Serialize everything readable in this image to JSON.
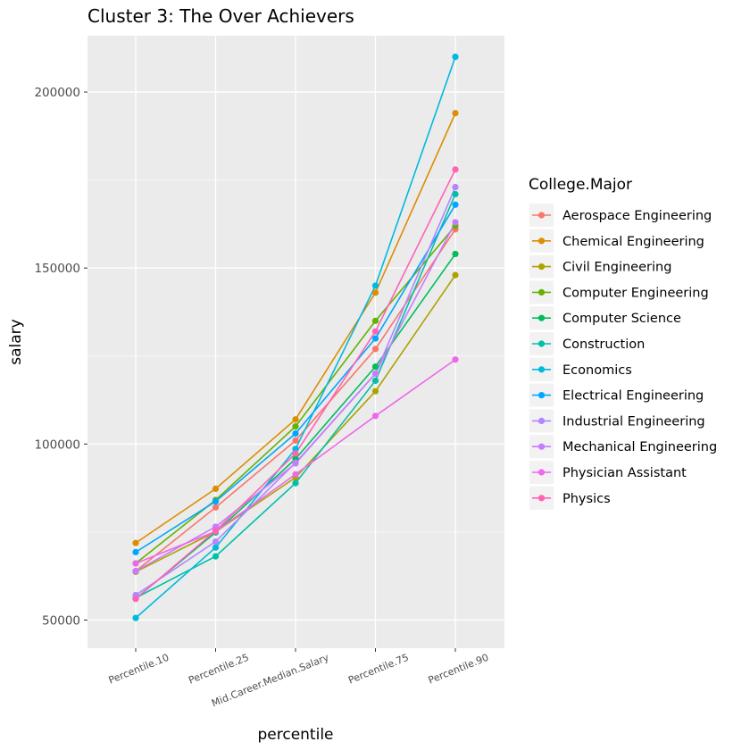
{
  "chart_data": {
    "type": "line",
    "title": "Cluster 3: The Over Achievers",
    "xlabel": "percentile",
    "ylabel": "salary",
    "categories": [
      "Percentile.10",
      "Percentile.25",
      "Mid.Career.Median.Salary",
      "Percentile.75",
      "Percentile.90"
    ],
    "yticks": [
      "50000",
      "100000",
      "150000",
      "200000"
    ],
    "ytick_values": [
      50000,
      100000,
      150000,
      200000
    ],
    "ylim": [
      42000,
      216000
    ],
    "grid": true,
    "legend_title": "College.Major",
    "legend_position": "right",
    "series": [
      {
        "name": "Aerospace Engineering",
        "color": "#F8766D",
        "values": [
          63900,
          82000,
          101000,
          127000,
          161000
        ]
      },
      {
        "name": "Chemical Engineering",
        "color": "#DB8E00",
        "values": [
          71900,
          87300,
          107000,
          143000,
          194000
        ]
      },
      {
        "name": "Civil Engineering",
        "color": "#AEA200",
        "values": [
          63700,
          75100,
          90500,
          115000,
          148000
        ]
      },
      {
        "name": "Computer Engineering",
        "color": "#64B200",
        "values": [
          66100,
          84100,
          105000,
          135000,
          162000
        ]
      },
      {
        "name": "Computer Science",
        "color": "#00BD5C",
        "values": [
          56100,
          74900,
          95800,
          122000,
          154000
        ]
      },
      {
        "name": "Construction",
        "color": "#00C1A7",
        "values": [
          56300,
          68100,
          88900,
          118000,
          171000
        ]
      },
      {
        "name": "Economics",
        "color": "#00BADE",
        "values": [
          50600,
          70600,
          98600,
          145000,
          210000
        ]
      },
      {
        "name": "Electrical Engineering",
        "color": "#00A6FF",
        "values": [
          69300,
          83700,
          103000,
          130000,
          168000
        ]
      },
      {
        "name": "Industrial Engineering",
        "color": "#B385FF",
        "values": [
          57100,
          72300,
          94700,
          120000,
          173000
        ]
      },
      {
        "name": "Mechanical Engineering",
        "color": "#C77CFF",
        "values": [
          63900,
          76500,
          94500,
          120000,
          163000
        ]
      },
      {
        "name": "Physician Assistant",
        "color": "#EF67EB",
        "values": [
          66100,
          75200,
          91400,
          108000,
          124000
        ]
      },
      {
        "name": "Physics",
        "color": "#FF63B6",
        "values": [
          56000,
          75400,
          97300,
          132000,
          178000
        ]
      }
    ]
  }
}
